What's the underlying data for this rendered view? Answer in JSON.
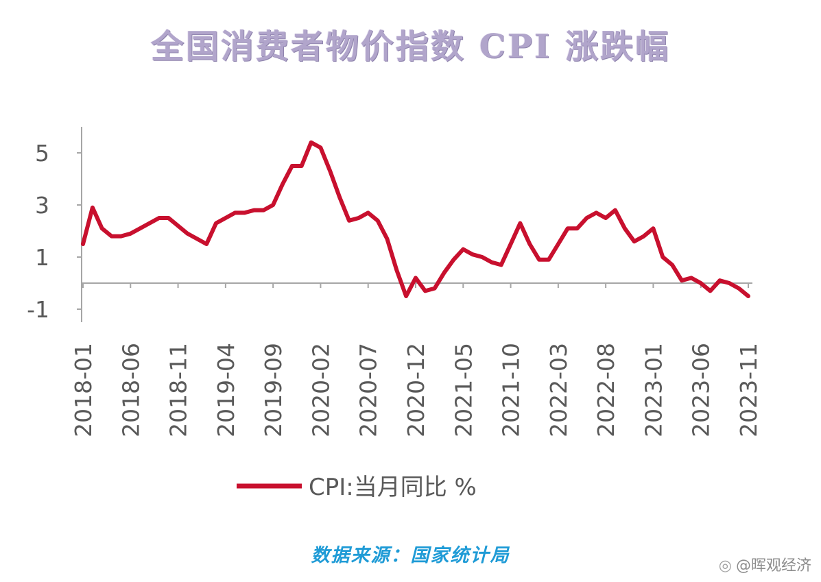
{
  "title": "全国消费者物价指数 CPI 涨跌幅",
  "source": "数据来源：国家统计局",
  "watermark": "@晖观经济",
  "watermark_icon": "weibo-icon",
  "colors": {
    "series": "#c8102e",
    "axis": "#a6a6a6",
    "tick_text": "#595959"
  },
  "chart_data": {
    "type": "line",
    "title": "",
    "xlabel": "",
    "ylabel": "",
    "ylim": [
      -1.5,
      6
    ],
    "yticks": [
      -1,
      1,
      3,
      5
    ],
    "grid": false,
    "legend": "bottom-center",
    "x_tick_labels": [
      "2018-01",
      "2018-06",
      "2018-11",
      "2019-04",
      "2019-09",
      "2020-02",
      "2020-07",
      "2020-12",
      "2021-05",
      "2021-10",
      "2022-03",
      "2022-08",
      "2023-01",
      "2023-06",
      "2023-11"
    ],
    "x": [
      "2018-01",
      "2018-02",
      "2018-03",
      "2018-04",
      "2018-05",
      "2018-06",
      "2018-07",
      "2018-08",
      "2018-09",
      "2018-10",
      "2018-11",
      "2018-12",
      "2019-01",
      "2019-02",
      "2019-03",
      "2019-04",
      "2019-05",
      "2019-06",
      "2019-07",
      "2019-08",
      "2019-09",
      "2019-10",
      "2019-11",
      "2019-12",
      "2020-01",
      "2020-02",
      "2020-03",
      "2020-04",
      "2020-05",
      "2020-06",
      "2020-07",
      "2020-08",
      "2020-09",
      "2020-10",
      "2020-11",
      "2020-12",
      "2021-01",
      "2021-02",
      "2021-03",
      "2021-04",
      "2021-05",
      "2021-06",
      "2021-07",
      "2021-08",
      "2021-09",
      "2021-10",
      "2021-11",
      "2021-12",
      "2022-01",
      "2022-02",
      "2022-03",
      "2022-04",
      "2022-05",
      "2022-06",
      "2022-07",
      "2022-08",
      "2022-09",
      "2022-10",
      "2022-11",
      "2022-12",
      "2023-01",
      "2023-02",
      "2023-03",
      "2023-04",
      "2023-05",
      "2023-06",
      "2023-07",
      "2023-08",
      "2023-09",
      "2023-10",
      "2023-11"
    ],
    "series": [
      {
        "name": "CPI:当月同比 %",
        "color": "#c8102e",
        "values": [
          1.5,
          2.9,
          2.1,
          1.8,
          1.8,
          1.9,
          2.1,
          2.3,
          2.5,
          2.5,
          2.2,
          1.9,
          1.7,
          1.5,
          2.3,
          2.5,
          2.7,
          2.7,
          2.8,
          2.8,
          3.0,
          3.8,
          4.5,
          4.5,
          5.4,
          5.2,
          4.3,
          3.3,
          2.4,
          2.5,
          2.7,
          2.4,
          1.7,
          0.5,
          -0.5,
          0.2,
          -0.3,
          -0.2,
          0.4,
          0.9,
          1.3,
          1.1,
          1.0,
          0.8,
          0.7,
          1.5,
          2.3,
          1.5,
          0.9,
          0.9,
          1.5,
          2.1,
          2.1,
          2.5,
          2.7,
          2.5,
          2.8,
          2.1,
          1.6,
          1.8,
          2.1,
          1.0,
          0.7,
          0.1,
          0.2,
          0.0,
          -0.3,
          0.1,
          0.0,
          -0.2,
          -0.5
        ]
      }
    ]
  }
}
